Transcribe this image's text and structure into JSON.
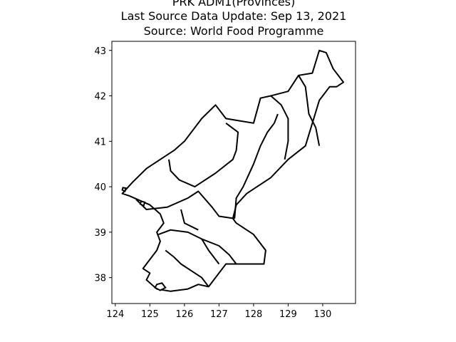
{
  "figure": {
    "title_lines": [
      "PRK ADM1(Provinces)",
      "Last Source Data Update: Sep 13, 2021",
      "Source: World Food Programme"
    ]
  },
  "map": {
    "projection": "plate-carree",
    "boundary_color": "#000000",
    "fill_color": "#ffffff",
    "x_axis": {
      "range": [
        123.9,
        130.95
      ],
      "ticks": [
        124,
        125,
        126,
        127,
        128,
        129,
        130
      ]
    },
    "y_axis": {
      "range": [
        37.43,
        43.2
      ],
      "ticks": [
        38,
        39,
        40,
        41,
        42,
        43
      ]
    },
    "outline": [
      [
        124.2,
        39.85
      ],
      [
        124.5,
        40.1
      ],
      [
        124.9,
        40.4
      ],
      [
        125.4,
        40.65
      ],
      [
        125.7,
        40.8
      ],
      [
        126.0,
        41.0
      ],
      [
        126.5,
        41.5
      ],
      [
        126.9,
        41.8
      ],
      [
        127.2,
        41.5
      ],
      [
        127.6,
        41.45
      ],
      [
        128.0,
        41.4
      ],
      [
        128.2,
        41.95
      ],
      [
        128.5,
        42.0
      ],
      [
        129.0,
        42.1
      ],
      [
        129.3,
        42.45
      ],
      [
        129.7,
        42.5
      ],
      [
        129.9,
        43.0
      ],
      [
        130.1,
        42.95
      ],
      [
        130.3,
        42.6
      ],
      [
        130.6,
        42.3
      ],
      [
        130.4,
        42.2
      ],
      [
        130.2,
        42.2
      ],
      [
        129.9,
        41.9
      ],
      [
        129.7,
        41.4
      ],
      [
        129.5,
        40.9
      ],
      [
        129.0,
        40.6
      ],
      [
        128.5,
        40.2
      ],
      [
        128.1,
        40.0
      ],
      [
        127.8,
        39.85
      ],
      [
        127.5,
        39.6
      ],
      [
        127.4,
        39.3
      ],
      [
        127.5,
        39.2
      ],
      [
        128.0,
        38.95
      ],
      [
        128.35,
        38.6
      ],
      [
        128.3,
        38.3
      ],
      [
        127.8,
        38.3
      ],
      [
        127.2,
        38.3
      ],
      [
        126.9,
        38.0
      ],
      [
        126.7,
        37.8
      ],
      [
        126.4,
        37.85
      ],
      [
        126.1,
        37.75
      ],
      [
        125.6,
        37.7
      ],
      [
        125.2,
        37.75
      ],
      [
        124.9,
        37.95
      ],
      [
        125.0,
        38.1
      ],
      [
        124.8,
        38.2
      ],
      [
        125.0,
        38.4
      ],
      [
        125.2,
        38.6
      ],
      [
        125.3,
        38.8
      ],
      [
        125.2,
        39.0
      ],
      [
        125.4,
        39.2
      ],
      [
        125.3,
        39.4
      ],
      [
        125.0,
        39.6
      ],
      [
        124.7,
        39.7
      ],
      [
        124.4,
        39.8
      ],
      [
        124.2,
        39.85
      ]
    ],
    "internal_boundaries": [
      [
        [
          125.55,
          40.6
        ],
        [
          125.6,
          40.35
        ],
        [
          125.85,
          40.15
        ],
        [
          126.3,
          40.0
        ],
        [
          126.9,
          40.3
        ],
        [
          127.4,
          40.6
        ],
        [
          127.5,
          40.8
        ],
        [
          127.55,
          41.2
        ],
        [
          127.2,
          41.4
        ]
      ],
      [
        [
          124.6,
          39.72
        ],
        [
          124.9,
          39.5
        ],
        [
          125.5,
          39.55
        ],
        [
          126.1,
          39.75
        ],
        [
          126.4,
          39.9
        ],
        [
          126.8,
          39.55
        ],
        [
          127.0,
          39.35
        ],
        [
          127.45,
          39.3
        ]
      ],
      [
        [
          127.45,
          39.3
        ],
        [
          127.5,
          39.75
        ],
        [
          127.7,
          40.0
        ],
        [
          128.0,
          40.5
        ],
        [
          128.2,
          40.9
        ],
        [
          128.4,
          41.2
        ],
        [
          128.6,
          41.4
        ],
        [
          128.7,
          41.6
        ]
      ],
      [
        [
          128.5,
          42.0
        ],
        [
          128.8,
          41.8
        ],
        [
          129.0,
          41.5
        ],
        [
          129.0,
          41.0
        ],
        [
          128.9,
          40.6
        ]
      ],
      [
        [
          129.3,
          42.45
        ],
        [
          129.5,
          42.2
        ],
        [
          129.6,
          41.6
        ],
        [
          129.8,
          41.3
        ],
        [
          129.9,
          40.9
        ]
      ],
      [
        [
          125.25,
          38.95
        ],
        [
          125.6,
          39.05
        ],
        [
          126.1,
          39.0
        ],
        [
          126.5,
          38.85
        ],
        [
          127.0,
          38.7
        ],
        [
          127.3,
          38.5
        ],
        [
          127.5,
          38.3
        ]
      ],
      [
        [
          125.45,
          38.6
        ],
        [
          125.7,
          38.45
        ],
        [
          125.9,
          38.3
        ],
        [
          126.2,
          38.15
        ],
        [
          126.5,
          38.0
        ],
        [
          126.7,
          37.8
        ]
      ],
      [
        [
          126.5,
          38.85
        ],
        [
          126.7,
          38.6
        ],
        [
          126.9,
          38.4
        ],
        [
          127.0,
          38.3
        ]
      ],
      [
        [
          125.9,
          39.5
        ],
        [
          126.0,
          39.2
        ],
        [
          126.4,
          39.05
        ]
      ]
    ],
    "islands": [
      [
        [
          125.15,
          37.78
        ],
        [
          125.3,
          37.72
        ],
        [
          125.45,
          37.78
        ],
        [
          125.35,
          37.88
        ],
        [
          125.2,
          37.85
        ],
        [
          125.15,
          37.78
        ]
      ],
      [
        [
          124.72,
          39.62
        ],
        [
          124.82,
          39.58
        ],
        [
          124.85,
          39.66
        ],
        [
          124.75,
          39.68
        ],
        [
          124.72,
          39.62
        ]
      ],
      [
        [
          124.2,
          39.93
        ],
        [
          124.28,
          39.9
        ],
        [
          124.3,
          39.97
        ],
        [
          124.22,
          39.98
        ],
        [
          124.2,
          39.93
        ]
      ]
    ]
  }
}
